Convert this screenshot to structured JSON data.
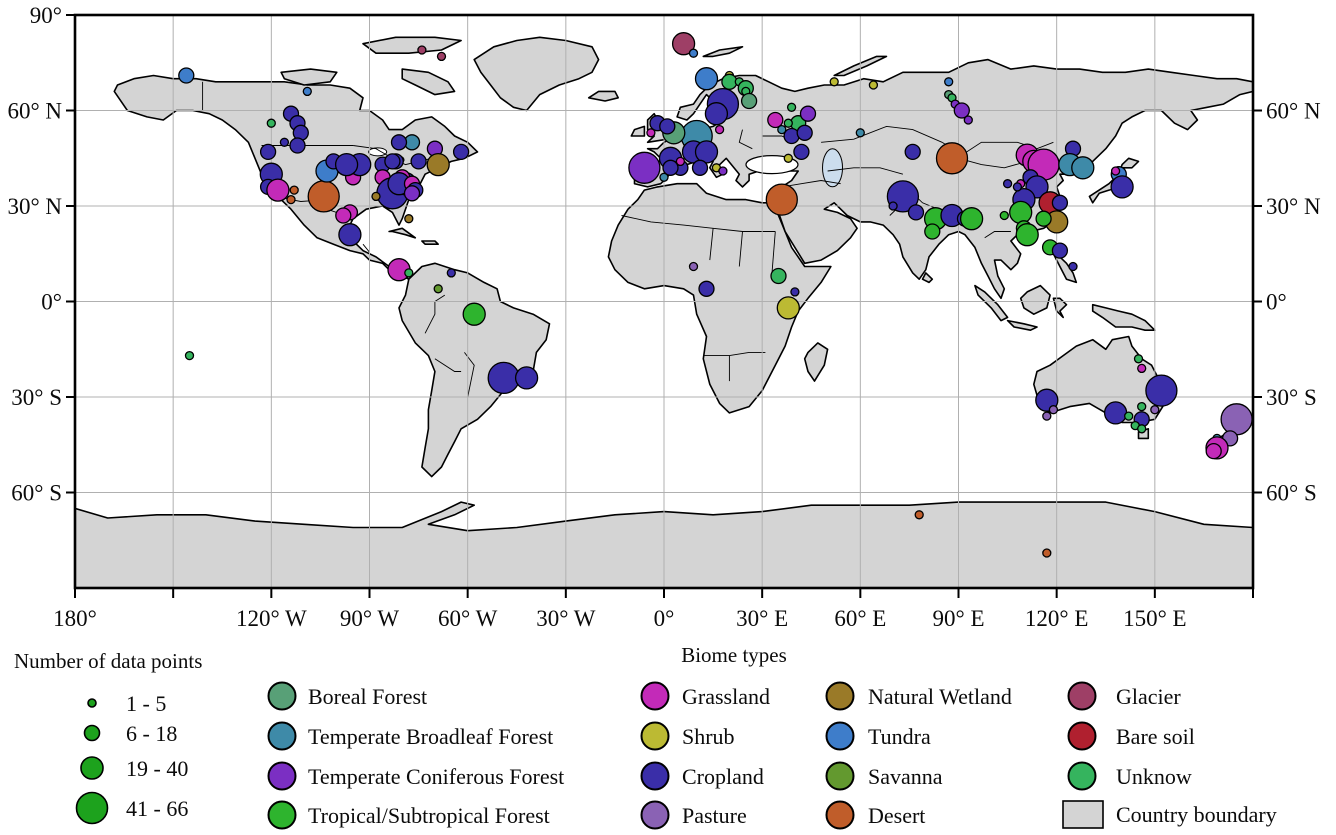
{
  "map": {
    "grid_interval_deg": 30,
    "country_fill": "#d4d4d4",
    "coastline_color": "#000000",
    "grid_color": "#b0b0b0",
    "caspian_fill": "#ccdded",
    "axes": {
      "left_labels": [
        {
          "text": "90°",
          "lat": 90
        },
        {
          "text": "60° N",
          "lat": 60
        },
        {
          "text": "30° N",
          "lat": 30
        },
        {
          "text": "0°",
          "lat": 0
        },
        {
          "text": "30° S",
          "lat": -30
        },
        {
          "text": "60° S",
          "lat": -60
        }
      ],
      "right_labels": [
        {
          "text": "60° N",
          "lat": 60
        },
        {
          "text": "30° N",
          "lat": 30
        },
        {
          "text": "0°",
          "lat": 0
        },
        {
          "text": "30° S",
          "lat": -30
        },
        {
          "text": "60° S",
          "lat": -60
        }
      ],
      "bottom_labels": [
        {
          "text": "180°",
          "lon": -180
        },
        {
          "text": "120° W",
          "lon": -120
        },
        {
          "text": "90° W",
          "lon": -90
        },
        {
          "text": "60° W",
          "lon": -60
        },
        {
          "text": "30° W",
          "lon": -30
        },
        {
          "text": "0°",
          "lon": 0
        },
        {
          "text": "30° E",
          "lon": 30
        },
        {
          "text": "60° E",
          "lon": 60
        },
        {
          "text": "90° E",
          "lon": 90
        },
        {
          "text": "120° E",
          "lon": 120
        },
        {
          "text": "150° E",
          "lon": 150
        }
      ]
    }
  },
  "legend": {
    "size": {
      "title": "Number of data points",
      "circle_color": "#1da21d",
      "items": [
        {
          "label": "1 - 5",
          "size_class": 1
        },
        {
          "label": "6 - 18",
          "size_class": 2
        },
        {
          "label": "19 - 40",
          "size_class": 3
        },
        {
          "label": "41 - 66",
          "size_class": 4
        }
      ]
    },
    "biomes": {
      "title": "Biome types",
      "columns": [
        [
          {
            "key": "boreal_forest",
            "label": "Boreal Forest"
          },
          {
            "key": "temperate_broadleaf_forest",
            "label": "Temperate Broadleaf Forest"
          },
          {
            "key": "temperate_coniferous_forest",
            "label": "Temperate Coniferous Forest"
          },
          {
            "key": "tropical_subtropical_forest",
            "label": "Tropical/Subtropical Forest"
          }
        ],
        [
          {
            "key": "grassland",
            "label": "Grassland"
          },
          {
            "key": "shrub",
            "label": "Shrub"
          },
          {
            "key": "cropland",
            "label": "Cropland"
          },
          {
            "key": "pasture",
            "label": "Pasture"
          }
        ],
        [
          {
            "key": "natural_wetland",
            "label": "Natural Wetland"
          },
          {
            "key": "tundra",
            "label": "Tundra"
          },
          {
            "key": "savanna",
            "label": "Savanna"
          },
          {
            "key": "desert",
            "label": "Desert"
          }
        ],
        [
          {
            "key": "glacier",
            "label": "Glacier"
          },
          {
            "key": "bare_soil",
            "label": "Bare soil"
          },
          {
            "key": "unknow",
            "label": "Unknow"
          }
        ]
      ],
      "country_boundary": {
        "label": "Country boundary",
        "fill": "#d4d4d4"
      }
    }
  },
  "chart_data": {
    "type": "scatter",
    "projection": "equirectangular",
    "lon_range": [
      -180,
      180
    ],
    "lat_range": [
      -90,
      90
    ],
    "grid": true,
    "title": "",
    "size_classes": [
      {
        "class": 1,
        "label": "1 - 5",
        "radius_px": 4
      },
      {
        "class": 2,
        "label": "6 - 18",
        "radius_px": 7.5
      },
      {
        "class": 3,
        "label": "19 - 40",
        "radius_px": 11
      },
      {
        "class": 4,
        "label": "41 - 66",
        "radius_px": 15.5
      }
    ],
    "biome_colors": {
      "boreal_forest": "#58a077",
      "temperate_broadleaf_forest": "#3e8aa8",
      "temperate_coniferous_forest": "#7b2fc3",
      "tropical_subtropical_forest": "#2eb42e",
      "grassland": "#c32ab8",
      "shrub": "#bcba33",
      "cropland": "#3a2ea8",
      "pasture": "#8a62b4",
      "natural_wetland": "#9a7a28",
      "tundra": "#3e7dca",
      "savanna": "#63992f",
      "desert": "#c05d2a",
      "glacier": "#9e3f66",
      "bare_soil": "#b0202f",
      "unknow": "#35b45e"
    },
    "points": [
      [
        -146,
        71,
        "tundra",
        2
      ],
      [
        -109,
        66,
        "tundra",
        1
      ],
      [
        -114,
        59,
        "cropland",
        2
      ],
      [
        -112,
        56,
        "cropland",
        2
      ],
      [
        -111,
        53,
        "cropland",
        2
      ],
      [
        -112,
        49,
        "cropland",
        2
      ],
      [
        -116,
        50,
        "cropland",
        1
      ],
      [
        -120,
        56,
        "unknow",
        1
      ],
      [
        -121,
        47,
        "cropland",
        2
      ],
      [
        -120,
        40,
        "cropland",
        3
      ],
      [
        -121,
        36,
        "cropland",
        2
      ],
      [
        -118,
        35,
        "grassland",
        3
      ],
      [
        -113,
        35,
        "desert",
        1
      ],
      [
        -114,
        32,
        "desert",
        1
      ],
      [
        -104,
        33,
        "desert",
        4
      ],
      [
        -103,
        41,
        "tundra",
        3
      ],
      [
        -101,
        44,
        "cropland",
        2
      ],
      [
        -95,
        39,
        "grassland",
        2
      ],
      [
        -93,
        43,
        "cropland",
        3
      ],
      [
        -97,
        43,
        "cropland",
        3
      ],
      [
        -86,
        43,
        "cropland",
        2
      ],
      [
        -82,
        44,
        "cropland",
        2
      ],
      [
        -86,
        39,
        "grassland",
        2
      ],
      [
        -83,
        34,
        "cropland",
        4
      ],
      [
        -79,
        37,
        "cropland",
        3
      ],
      [
        -80,
        39,
        "grassland",
        2
      ],
      [
        -77,
        50,
        "temperate_broadleaf_forest",
        2
      ],
      [
        -81,
        50,
        "cropland",
        2
      ],
      [
        -70,
        48,
        "temperate_coniferous_forest",
        2
      ],
      [
        -62,
        47,
        "cropland",
        2
      ],
      [
        -69,
        43,
        "natural_wetland",
        3
      ],
      [
        -75,
        44,
        "cropland",
        2
      ],
      [
        -83,
        44,
        "cropland",
        2
      ],
      [
        -81,
        37,
        "cropland",
        3
      ],
      [
        -77,
        37,
        "grassland",
        2
      ],
      [
        -76,
        35,
        "cropland",
        2
      ],
      [
        -77,
        34,
        "temperate_coniferous_forest",
        2
      ],
      [
        -78,
        26,
        "natural_wetland",
        1
      ],
      [
        -96,
        28,
        "grassland",
        2
      ],
      [
        -98,
        27,
        "grassland",
        2
      ],
      [
        -88,
        33,
        "natural_wetland",
        1
      ],
      [
        -96,
        21,
        "cropland",
        3
      ],
      [
        -81,
        10,
        "grassland",
        3
      ],
      [
        -78,
        9,
        "unknow",
        1
      ],
      [
        -69,
        4,
        "savanna",
        1
      ],
      [
        -65,
        9,
        "cropland",
        1
      ],
      [
        -145,
        -17,
        "unknow",
        1
      ],
      [
        -58,
        -4,
        "tropical_subtropical_forest",
        3
      ],
      [
        -49,
        -24,
        "cropland",
        4
      ],
      [
        -42,
        -24,
        "cropland",
        3
      ],
      [
        -74,
        79,
        "glacier",
        1
      ],
      [
        -68,
        77,
        "glacier",
        1
      ],
      [
        6,
        81,
        "glacier",
        3
      ],
      [
        9,
        78,
        "tundra",
        1
      ],
      [
        13,
        70,
        "tundra",
        3
      ],
      [
        20,
        71,
        "shrub",
        1
      ],
      [
        20,
        69,
        "unknow",
        2
      ],
      [
        23,
        69,
        "unknow",
        1
      ],
      [
        25,
        67,
        "unknow",
        2
      ],
      [
        25,
        66,
        "unknow",
        1
      ],
      [
        26,
        63,
        "boreal_forest",
        2
      ],
      [
        18,
        62,
        "cropland",
        4
      ],
      [
        16,
        59,
        "cropland",
        3
      ],
      [
        10,
        52,
        "temperate_broadleaf_forest",
        4
      ],
      [
        3,
        53,
        "boreal_forest",
        3
      ],
      [
        -2,
        56,
        "cropland",
        2
      ],
      [
        1,
        55,
        "cropland",
        2
      ],
      [
        -4,
        53,
        "grassland",
        1
      ],
      [
        17,
        54,
        "grassland",
        1
      ],
      [
        9,
        47,
        "cropland",
        3
      ],
      [
        13,
        47,
        "cropland",
        3
      ],
      [
        2,
        45,
        "cropland",
        3
      ],
      [
        5,
        42,
        "cropland",
        2
      ],
      [
        11,
        42,
        "cropland",
        2
      ],
      [
        -6,
        42,
        "temperate_coniferous_forest",
        4
      ],
      [
        5,
        44,
        "grassland",
        1
      ],
      [
        16,
        42,
        "shrub",
        1
      ],
      [
        18,
        41,
        "temperate_coniferous_forest",
        1
      ],
      [
        0,
        39,
        "temperate_broadleaf_forest",
        1
      ],
      [
        2,
        42,
        "cropland",
        2
      ],
      [
        34,
        57,
        "grassland",
        2
      ],
      [
        41,
        56,
        "unknow",
        2
      ],
      [
        38,
        56,
        "unknow",
        1
      ],
      [
        36,
        54,
        "temperate_broadleaf_forest",
        1
      ],
      [
        39,
        61,
        "unknow",
        1
      ],
      [
        44,
        59,
        "temperate_coniferous_forest",
        2
      ],
      [
        39,
        52,
        "cropland",
        2
      ],
      [
        43,
        53,
        "cropland",
        2
      ],
      [
        42,
        47,
        "cropland",
        2
      ],
      [
        38,
        45,
        "shrub",
        1
      ],
      [
        60,
        53,
        "temperate_broadleaf_forest",
        1
      ],
      [
        36,
        32,
        "desert",
        4
      ],
      [
        9,
        11,
        "pasture",
        1
      ],
      [
        13,
        4,
        "cropland",
        2
      ],
      [
        35,
        8,
        "unknow",
        2
      ],
      [
        40,
        3,
        "cropland",
        1
      ],
      [
        38,
        -2,
        "shrub",
        3
      ],
      [
        52,
        69,
        "shrub",
        1
      ],
      [
        64,
        68,
        "shrub",
        1
      ],
      [
        87,
        69,
        "tundra",
        1
      ],
      [
        87,
        65,
        "boreal_forest",
        1
      ],
      [
        88,
        64,
        "unknow",
        1
      ],
      [
        89,
        62,
        "temperate_coniferous_forest",
        1
      ],
      [
        91,
        60,
        "temperate_coniferous_forest",
        2
      ],
      [
        93,
        57,
        "temperate_coniferous_forest",
        1
      ],
      [
        76,
        47,
        "cropland",
        2
      ],
      [
        88,
        45,
        "desert",
        4
      ],
      [
        111,
        46,
        "grassland",
        3
      ],
      [
        113,
        44,
        "grassland",
        3
      ],
      [
        116,
        43,
        "grassland",
        4
      ],
      [
        125,
        48,
        "cropland",
        2
      ],
      [
        124,
        43,
        "temperate_broadleaf_forest",
        3
      ],
      [
        128,
        42,
        "temperate_broadleaf_forest",
        3
      ],
      [
        112,
        39,
        "cropland",
        2
      ],
      [
        114,
        36,
        "cropland",
        3
      ],
      [
        110,
        32,
        "cropland",
        3
      ],
      [
        109,
        37,
        "grassland",
        1
      ],
      [
        105,
        37,
        "cropland",
        1
      ],
      [
        108,
        36,
        "cropland",
        1
      ],
      [
        118,
        31,
        "bare_soil",
        3
      ],
      [
        121,
        31,
        "cropland",
        2
      ],
      [
        120,
        25,
        "natural_wetland",
        3
      ],
      [
        139,
        40,
        "tundra",
        2
      ],
      [
        140,
        36,
        "cropland",
        3
      ],
      [
        138,
        41,
        "grassland",
        1
      ],
      [
        73,
        33,
        "cropland",
        4
      ],
      [
        70,
        30,
        "cropland",
        1
      ],
      [
        77,
        28,
        "cropland",
        2
      ],
      [
        83,
        26,
        "tropical_subtropical_forest",
        3
      ],
      [
        82,
        22,
        "tropical_subtropical_forest",
        2
      ],
      [
        88,
        27,
        "cropland",
        3
      ],
      [
        92,
        26,
        "cropland",
        2
      ],
      [
        94,
        26,
        "tropical_subtropical_forest",
        3
      ],
      [
        104,
        27,
        "tropical_subtropical_forest",
        1
      ],
      [
        109,
        28,
        "tropical_subtropical_forest",
        3
      ],
      [
        116,
        26,
        "tropical_subtropical_forest",
        2
      ],
      [
        110,
        23,
        "tropical_subtropical_forest",
        2
      ],
      [
        111,
        21,
        "tropical_subtropical_forest",
        3
      ],
      [
        118,
        17,
        "tropical_subtropical_forest",
        2
      ],
      [
        121,
        16,
        "cropland",
        2
      ],
      [
        125,
        11,
        "cropland",
        1
      ],
      [
        145,
        -18,
        "unknow",
        1
      ],
      [
        146,
        -21,
        "grassland",
        1
      ],
      [
        152,
        -28,
        "cropland",
        4
      ],
      [
        117,
        -31,
        "cropland",
        3
      ],
      [
        119,
        -34,
        "pasture",
        1
      ],
      [
        117,
        -36,
        "pasture",
        1
      ],
      [
        138,
        -35,
        "cropland",
        3
      ],
      [
        142,
        -36,
        "unknow",
        1
      ],
      [
        146,
        -33,
        "unknow",
        1
      ],
      [
        150,
        -34,
        "pasture",
        1
      ],
      [
        146,
        -37,
        "cropland",
        2
      ],
      [
        144,
        -39,
        "unknow",
        1
      ],
      [
        146,
        -40,
        "unknow",
        1
      ],
      [
        175,
        -37,
        "pasture",
        4
      ],
      [
        173,
        -43,
        "pasture",
        2
      ],
      [
        169,
        -43,
        "temperate_broadleaf_forest",
        1
      ],
      [
        169,
        -46,
        "grassland",
        3
      ],
      [
        168,
        -47,
        "grassland",
        2
      ],
      [
        78,
        -67,
        "desert",
        1
      ],
      [
        117,
        -79,
        "desert",
        1
      ]
    ]
  }
}
